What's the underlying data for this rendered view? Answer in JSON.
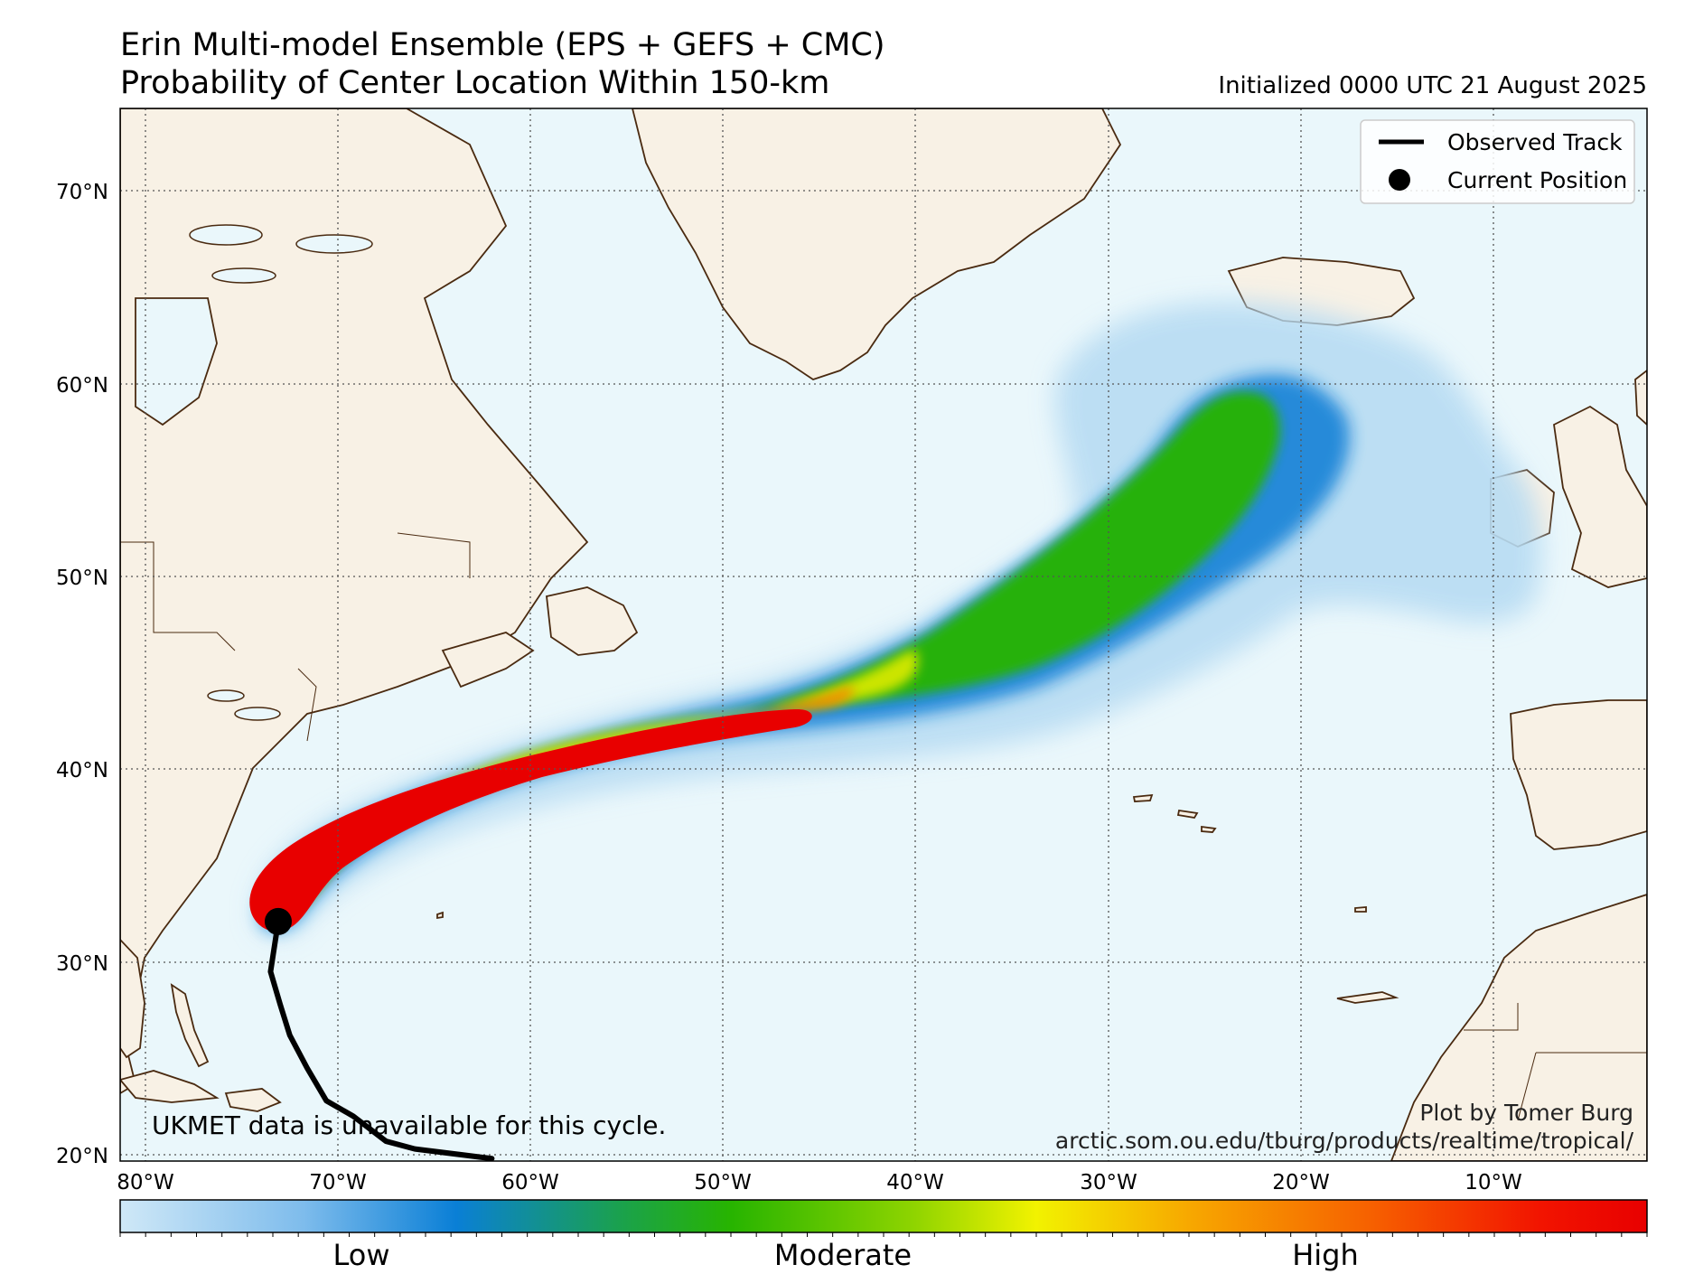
{
  "title_line1": "Erin Multi-model Ensemble (EPS + GEFS + CMC)",
  "title_line2": "Probability of Center Location Within 150-km",
  "initialized": "Initialized 0000 UTC 21 August 2025",
  "legend": {
    "observed_track": "Observed Track",
    "current_position": "Current Position"
  },
  "notes": {
    "ukmet": "UKMET data is unavailable for this cycle.",
    "credit": "Plot by Tomer Burg",
    "url": "arctic.som.ou.edu/tburg/products/realtime/tropical/"
  },
  "axes": {
    "lat_labels": [
      "70°N",
      "60°N",
      "50°N",
      "40°N",
      "30°N",
      "20°N"
    ],
    "lon_labels": [
      "80°W",
      "70°W",
      "60°W",
      "50°W",
      "40°W",
      "30°W",
      "20°W",
      "10°W"
    ]
  },
  "colorbar": {
    "labels": [
      "Low",
      "Moderate",
      "High"
    ],
    "colors": [
      "#cfe8f7",
      "#8cc8f0",
      "#0a7fd6",
      "#1ba24a",
      "#34b800",
      "#8fd400",
      "#f2f200",
      "#f7a800",
      "#f66000",
      "#e80000"
    ]
  },
  "colors": {
    "ocean": "#eaf7fb",
    "land": "#f8f1e5",
    "coast": "#4a2a10",
    "track": "#000000"
  },
  "storm": {
    "name": "Erin",
    "current_position": {
      "lat": 32.1,
      "lon": -73.1
    },
    "observed_track": [
      {
        "lat": 19.8,
        "lon": -62.0
      },
      {
        "lat": 20.3,
        "lon": -66.0
      },
      {
        "lat": 20.7,
        "lon": -67.5
      },
      {
        "lat": 22.0,
        "lon": -69.2
      },
      {
        "lat": 22.8,
        "lon": -70.6
      },
      {
        "lat": 24.5,
        "lon": -71.6
      },
      {
        "lat": 26.2,
        "lon": -72.5
      },
      {
        "lat": 27.8,
        "lon": -73.0
      },
      {
        "lat": 29.5,
        "lon": -73.5
      },
      {
        "lat": 32.1,
        "lon": -73.1
      }
    ]
  }
}
